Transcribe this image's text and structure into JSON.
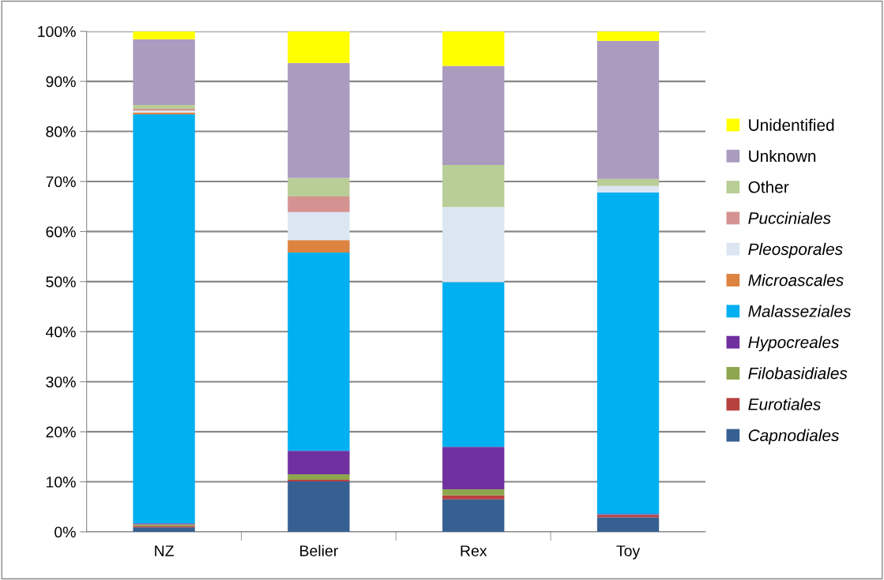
{
  "chart_data": {
    "type": "bar",
    "stacked": true,
    "categories": [
      "NZ",
      "Belier",
      "Rex",
      "Toy"
    ],
    "series": [
      {
        "name": "Capnodiales",
        "color": "#376092",
        "values": [
          0.9,
          10.1,
          6.5,
          2.9
        ]
      },
      {
        "name": "Eurotiales",
        "color": "#b7413e",
        "values": [
          0.3,
          0.3,
          0.8,
          0.4
        ]
      },
      {
        "name": "Filobasidiales",
        "color": "#8ea64f",
        "values": [
          0.3,
          1.1,
          1.2,
          0.1
        ]
      },
      {
        "name": "Hypocreales",
        "color": "#7030a0",
        "values": [
          0.2,
          4.7,
          8.5,
          0.2
        ]
      },
      {
        "name": "Malasseziales",
        "color": "#00b0f0",
        "values": [
          81.7,
          39.6,
          32.9,
          64.2
        ]
      },
      {
        "name": "Microascales",
        "color": "#dd8340",
        "values": [
          0.4,
          2.5,
          0,
          0
        ]
      },
      {
        "name": "Pleosporales",
        "color": "#dce6f2",
        "values": [
          0.4,
          5.6,
          15.0,
          1.3
        ]
      },
      {
        "name": "Pucciniales",
        "color": "#d49391",
        "values": [
          0.3,
          3.1,
          0,
          0
        ]
      },
      {
        "name": "Other",
        "color": "#b9cd96",
        "values": [
          0.8,
          3.7,
          8.4,
          1.4
        ]
      },
      {
        "name": "Unknown",
        "color": "#aa9bbf",
        "values": [
          13.1,
          23.0,
          19.8,
          27.6
        ]
      },
      {
        "name": "Unidentified",
        "color": "#ffff00",
        "values": [
          1.6,
          6.3,
          6.9,
          1.9
        ]
      }
    ],
    "ylim": [
      0,
      100
    ],
    "yticks": [
      {
        "value": 0,
        "label": "0%"
      },
      {
        "value": 10,
        "label": "10%"
      },
      {
        "value": 20,
        "label": "20%"
      },
      {
        "value": 30,
        "label": "30%"
      },
      {
        "value": 40,
        "label": "40%"
      },
      {
        "value": 50,
        "label": "50%"
      },
      {
        "value": 60,
        "label": "60%"
      },
      {
        "value": 70,
        "label": "70%"
      },
      {
        "value": 80,
        "label": "80%"
      },
      {
        "value": 90,
        "label": "90%"
      },
      {
        "value": 100,
        "label": "100%"
      }
    ],
    "grid": "y",
    "legend": "right"
  }
}
